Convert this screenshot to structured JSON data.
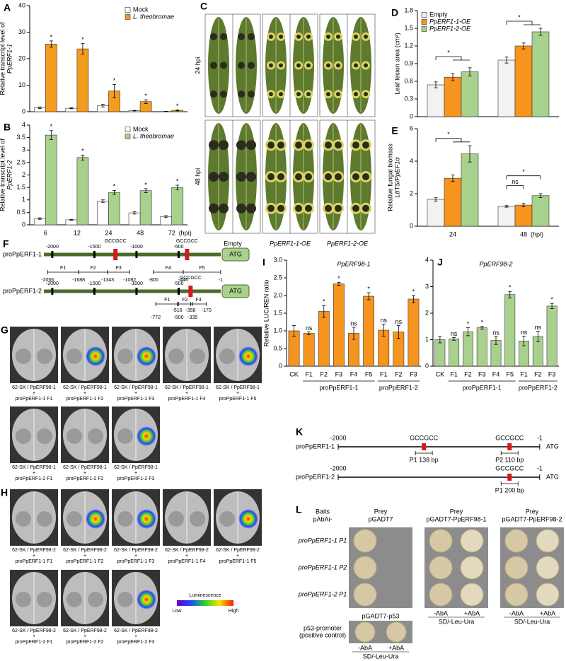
{
  "chart_data": [
    {
      "type": "bar",
      "label": "A",
      "ylabel": [
        "Relative transcript level of",
        "PpERF1-1"
      ],
      "categories": [
        null,
        null,
        null,
        null,
        null
      ],
      "series": [
        {
          "name": "Mock",
          "color": "#ffffff",
          "values": [
            1.5,
            1.3,
            2.3,
            0.4,
            0.1
          ],
          "errors": [
            0.3,
            0.2,
            0.5,
            0.1,
            0.05
          ]
        },
        {
          "name": "L. theobromae",
          "color": "#f39c1f",
          "values": [
            25.5,
            23.7,
            7.8,
            3.8,
            0.5
          ],
          "errors": [
            1.2,
            2.0,
            2.5,
            0.7,
            0.2
          ],
          "significance": [
            "*",
            "*",
            "*",
            "*",
            "*"
          ]
        }
      ],
      "ylim": [
        0,
        40
      ],
      "yticks": [
        0,
        10,
        20,
        30,
        40
      ],
      "legend": "upper-right"
    },
    {
      "type": "bar",
      "label": "B",
      "ylabel": [
        "Relative transcript level of",
        "PpERF1-2"
      ],
      "categories": [
        "6",
        "12",
        "24",
        "48",
        "72"
      ],
      "xlabel": "(hpi)",
      "series": [
        {
          "name": "Mock",
          "color": "#ffffff",
          "values": [
            0.25,
            0.2,
            0.95,
            0.48,
            0.33
          ],
          "errors": [
            0.03,
            0.02,
            0.05,
            0.05,
            0.04
          ]
        },
        {
          "name": "L. theobromae",
          "color": "#a9d18e",
          "values": [
            3.6,
            2.7,
            1.3,
            1.37,
            1.5
          ],
          "errors": [
            0.18,
            0.1,
            0.08,
            0.08,
            0.09
          ],
          "significance": [
            "*",
            "*",
            "*",
            "*",
            "*"
          ]
        }
      ],
      "ylim": [
        0,
        4
      ],
      "yticks": [
        0,
        0.5,
        1,
        1.5,
        2,
        2.5,
        3,
        3.5,
        4
      ],
      "legend": "upper-right"
    },
    {
      "type": "bar",
      "label": "D",
      "ylabel": "Leaf lesion area (cm²)",
      "categories": [
        null,
        null
      ],
      "series": [
        {
          "name": "Empty",
          "color": "#f2f2f2",
          "values": [
            0.54,
            0.96
          ],
          "errors": [
            0.05,
            0.05
          ]
        },
        {
          "name": "PpERF1-1-OE",
          "color": "#f7941d",
          "values": [
            0.67,
            1.2
          ],
          "errors": [
            0.06,
            0.05
          ]
        },
        {
          "name": "PpERF1-2-OE",
          "color": "#a9d18e",
          "values": [
            0.76,
            1.44
          ],
          "errors": [
            0.07,
            0.06
          ]
        }
      ],
      "ylim": [
        0,
        1.8
      ],
      "yticks": [
        0,
        0.3,
        0.6,
        0.9,
        1.2,
        1.5,
        1.8
      ],
      "legend": "upper-left",
      "annotations": [
        {
          "text": "*"
        },
        {
          "text": "*"
        }
      ]
    },
    {
      "type": "bar",
      "label": "E",
      "ylabel": [
        "Relative fungal biomass",
        "LtITS/PpEF1α"
      ],
      "categories": [
        "24",
        "48"
      ],
      "xlabel": "(hpi)",
      "series": [
        {
          "color": "#f2f2f2",
          "values": [
            1.65,
            1.22
          ],
          "errors": [
            0.1,
            0.05
          ]
        },
        {
          "color": "#f7941d",
          "values": [
            2.95,
            1.3
          ],
          "errors": [
            0.2,
            0.1
          ]
        },
        {
          "color": "#a9d18e",
          "values": [
            4.45,
            1.88
          ],
          "errors": [
            0.5,
            0.12
          ]
        }
      ],
      "ylim": [
        0,
        6
      ],
      "yticks": [
        0,
        2,
        4,
        6
      ],
      "annotations": [
        {
          "text": "*"
        },
        {
          "text": "ns"
        },
        {
          "text": "*"
        }
      ]
    },
    {
      "type": "bar",
      "label": "I",
      "title": "PpERF98-1",
      "ylabel": "Relative LUC/REN ratio",
      "categories": [
        "CK",
        "F1",
        "F2",
        "F3",
        "F4",
        "F5",
        "F1",
        "F2",
        "F3"
      ],
      "group_labels": [
        "proPpERF1-1",
        "proPpERF1-2"
      ],
      "color": "#f7941d",
      "values": [
        1.0,
        0.93,
        1.55,
        2.33,
        0.93,
        1.98,
        1.02,
        0.97,
        1.9
      ],
      "errors": [
        0.15,
        0.04,
        0.17,
        0.04,
        0.17,
        0.1,
        0.17,
        0.18,
        0.1
      ],
      "significance": [
        null,
        "ns",
        "*",
        "*",
        "ns",
        "*",
        "ns",
        "ns",
        "*"
      ],
      "ylim": [
        0,
        3
      ],
      "yticks": [
        0,
        0.5,
        {
          "value": 1,
          "label": "1.0"
        },
        1.5,
        {
          "value": 2,
          "label": "2.0"
        },
        2.5,
        {
          "value": 3,
          "label": "3.0"
        }
      ]
    },
    {
      "type": "bar",
      "label": "J",
      "title": "PpERF98-2",
      "categories": [
        "CK",
        "F1",
        "F2",
        "F3",
        "F4",
        "F5",
        "F1",
        "F2",
        "F3"
      ],
      "group_labels": [
        "proPpERF1-1",
        "proPpERF1-2"
      ],
      "color": "#a9d18e",
      "values": [
        1.0,
        1.03,
        1.3,
        1.45,
        0.97,
        2.7,
        0.95,
        1.12,
        2.27
      ],
      "errors": [
        0.12,
        0.05,
        0.15,
        0.05,
        0.15,
        0.12,
        0.18,
        0.2,
        0.1
      ],
      "significance": [
        null,
        "ns",
        "*",
        "*",
        "ns",
        "*",
        "ns",
        "ns",
        "*"
      ],
      "ylim": [
        0,
        4
      ],
      "yticks": [
        0,
        1,
        2,
        3,
        4
      ]
    }
  ],
  "panel_c": {
    "label": "C",
    "rows": [
      "24 hpi",
      "48 hpi"
    ],
    "columns": [
      "Empty",
      "PpERF1-1-OE",
      "PpERF1-2-OE"
    ]
  },
  "panel_f": {
    "label": "F",
    "rows": [
      {
        "name": "proPpERF1-1",
        "ticks": [
          "-2000",
          "-1500",
          "-1000",
          "-500"
        ],
        "motifs": [
          "GCCGCC",
          "GCCGCC"
        ],
        "tss": "ATG",
        "fragments": [
          "F1",
          "F2",
          "F3",
          "F4",
          "F5"
        ],
        "coords": [
          "-2056",
          "-1688",
          "-1343",
          "-1082",
          "-800",
          "-446",
          "-1"
        ]
      },
      {
        "name": "proPpERF1-2",
        "ticks": [
          "-2000",
          "-1500",
          "-1000",
          "-500"
        ],
        "motifs": [
          "GCCGCC"
        ],
        "tss": "ATG",
        "fragments": [
          "F1",
          "F2",
          "F3"
        ],
        "coords": [
          "-772",
          "-516",
          "-500",
          "-358",
          "-335",
          "-170"
        ]
      }
    ]
  },
  "panel_g": {
    "label": "G",
    "rows": [
      {
        "effector": "62-SK / PpERF98-1",
        "plus": "+",
        "promoters": [
          "proPpERF1-1 F1",
          "proPpERF1-1 F2",
          "proPpERF1-1 F3",
          "proPpERF1-1 F4",
          "proPpERF1-1 F5"
        ]
      },
      {
        "effector": "62-SK / PpERF98-1",
        "plus": "+",
        "promoters": [
          "proPpERF1-2 F1",
          "proPpERF1-2 F2",
          "proPpERF1-2 F3"
        ]
      }
    ]
  },
  "panel_h": {
    "label": "H",
    "rows": [
      {
        "effector": "62-SK / PpERF98-2",
        "plus": "+",
        "promoters": [
          "proPpERF1-1 F1",
          "proPpERF1-1 F2",
          "proPpERF1-1 F3",
          "proPpERF1-1 F4",
          "proPpERF1-1 F5"
        ]
      },
      {
        "effector": "62-SK / PpERF98-2",
        "plus": "+",
        "promoters": [
          "proPpERF1-2 F1",
          "proPpERF1-2 F2",
          "proPpERF1-2 F3"
        ]
      }
    ],
    "legend": {
      "title": "Luminescence",
      "low": "Low",
      "high": "High"
    }
  },
  "panel_k": {
    "label": "K",
    "rows": [
      {
        "name": "proPpERF1-1",
        "start": "-2000",
        "end": "-1",
        "tss": "ATG",
        "motifs": [
          "GCCGCC",
          "GCCGCC"
        ],
        "probes": [
          "P1 138 bp",
          "P2 110 bp"
        ]
      },
      {
        "name": "proPpERF1-2",
        "start": "-2000",
        "end": "-1",
        "tss": "ATG",
        "motifs": [
          "GCCGCC"
        ],
        "probes": [
          "P1 200 bp"
        ]
      }
    ]
  },
  "panel_l": {
    "label": "L",
    "baits_title": [
      "Baits",
      "pAbAi-"
    ],
    "preys": [
      {
        "title": "Prey",
        "name": "pGADT7"
      },
      {
        "title": "Prey",
        "name": "pGADT7-PpERF98-1"
      },
      {
        "title": "Prey",
        "name": "pGADT7-PpERF98-2"
      }
    ],
    "rows": [
      "proPpERF1-1 P1",
      "proPpERF1-1 P2",
      "proPpERF1-2 P1"
    ],
    "control": {
      "bait": [
        "p53-promoter",
        "(positive control)"
      ],
      "prey": "pGADT7-p53"
    },
    "media": [
      "-AbA",
      "+AbA"
    ],
    "medium": "SD/-Leu-Ura"
  }
}
